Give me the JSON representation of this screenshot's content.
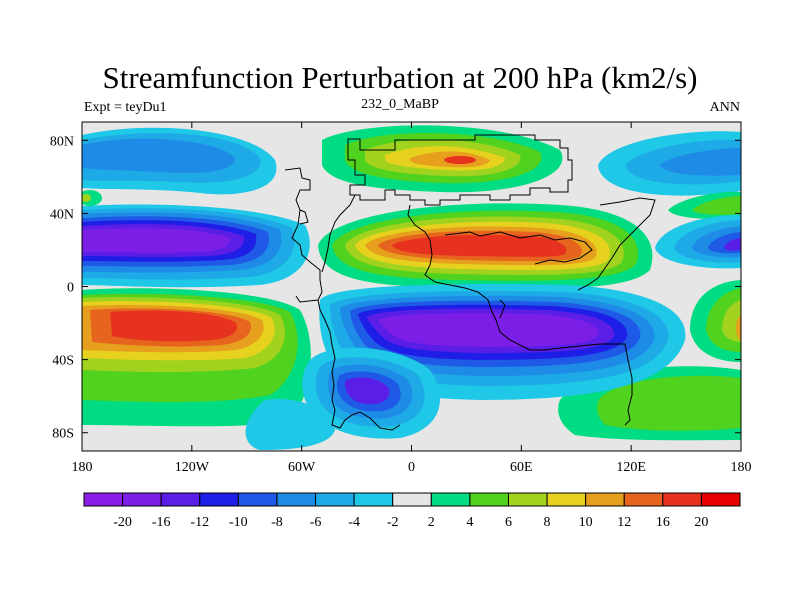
{
  "title": "Streamfunction Perturbation at 200 hPa (km2/s)",
  "left_string": "Expt = teyDu1",
  "center_string": "232_0_MaBP",
  "right_string": "ANN",
  "chart_data": {
    "type": "contour-map",
    "title": "Streamfunction Perturbation at 200 hPa (km2/s)",
    "units": "km2/s",
    "xlim": [
      -180,
      180
    ],
    "ylim": [
      -90,
      90
    ],
    "x_ticks": [
      {
        "value": -180,
        "label": "180"
      },
      {
        "value": -120,
        "label": "120W"
      },
      {
        "value": -60,
        "label": "60W"
      },
      {
        "value": 0,
        "label": "0"
      },
      {
        "value": 60,
        "label": "60E"
      },
      {
        "value": 120,
        "label": "120E"
      },
      {
        "value": 180,
        "label": "180"
      }
    ],
    "y_ticks": [
      {
        "value": 80,
        "label": "80N"
      },
      {
        "value": 40,
        "label": "40N"
      },
      {
        "value": 0,
        "label": "0"
      },
      {
        "value": -40,
        "label": "40S"
      },
      {
        "value": -80,
        "label": "80S"
      }
    ],
    "levels": [
      "-20",
      "-16",
      "-12",
      "-10",
      "-8",
      "-6",
      "-4",
      "-2",
      "2",
      "4",
      "6",
      "8",
      "10",
      "12",
      "16",
      "20"
    ],
    "colors": [
      "#8a1ee6",
      "#7b1ee6",
      "#5a1ee6",
      "#1e1ee6",
      "#1e5ae6",
      "#1e8ce6",
      "#1eaae6",
      "#1ec8e6",
      "#e6e6e6",
      "#00dc82",
      "#50d21e",
      "#a0d21e",
      "#e6d21e",
      "#e6a01e",
      "#e6641e",
      "#e6321e",
      "#e60000"
    ],
    "regions": [
      {
        "name": "north-pacific-negative",
        "center": [
          -140,
          82
        ],
        "sign": "negative",
        "peak_level": -8
      },
      {
        "name": "north-atlantic-positive",
        "center": [
          25,
          70
        ],
        "sign": "positive",
        "peak_level": 16
      },
      {
        "name": "subtropical-pacific-low",
        "center": [
          -130,
          23
        ],
        "sign": "negative",
        "peak_level": -20
      },
      {
        "name": "subtropical-asia-high",
        "center": [
          40,
          23
        ],
        "sign": "positive",
        "peak_level": 16
      },
      {
        "name": "south-pacific-high",
        "center": [
          -120,
          -19
        ],
        "sign": "positive",
        "peak_level": 20
      },
      {
        "name": "south-indian-low",
        "center": [
          40,
          -23
        ],
        "sign": "negative",
        "peak_level": -20
      },
      {
        "name": "south-atlantic-low",
        "center": [
          -15,
          -60
        ],
        "sign": "negative",
        "peak_level": -16
      },
      {
        "name": "far-east-pacific-low",
        "center": [
          175,
          22
        ],
        "sign": "negative",
        "peak_level": -12
      },
      {
        "name": "north-far-east-low",
        "center": [
          165,
          80
        ],
        "sign": "negative",
        "peak_level": -8
      }
    ]
  }
}
